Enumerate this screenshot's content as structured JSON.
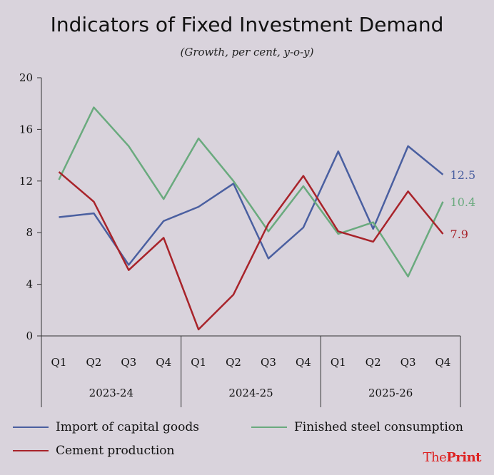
{
  "title": "Indicators of Fixed Investment Demand",
  "subtitle": "(Growth, per cent, y-o-y)",
  "brand": {
    "pre": "The",
    "bold": "Print"
  },
  "chart_data": {
    "type": "line",
    "x": [
      "Q1",
      "Q2",
      "Q3",
      "Q4",
      "Q1",
      "Q2",
      "Q3",
      "Q4",
      "Q1",
      "Q2",
      "Q3",
      "Q4"
    ],
    "groups": [
      {
        "label": "2023-24",
        "start": 0,
        "end": 3
      },
      {
        "label": "2024-25",
        "start": 4,
        "end": 7
      },
      {
        "label": "2025-26",
        "start": 8,
        "end": 11
      }
    ],
    "ylim": [
      0,
      20
    ],
    "yticks": [
      0,
      4,
      8,
      12,
      16,
      20
    ],
    "series": [
      {
        "name": "Import of capital goods",
        "color": "#4a5fa0",
        "values": [
          9.2,
          9.5,
          5.5,
          8.9,
          10.0,
          11.8,
          6.0,
          8.4,
          14.3,
          8.3,
          14.7,
          12.5
        ],
        "end_label": "12.5"
      },
      {
        "name": "Finished steel consumption",
        "color": "#6aaa7e",
        "values": [
          12.1,
          17.7,
          14.7,
          10.6,
          15.3,
          12.0,
          8.1,
          11.6,
          7.9,
          8.8,
          4.6,
          10.4
        ],
        "end_label": "10.4"
      },
      {
        "name": "Cement production",
        "color": "#a8232a",
        "values": [
          12.7,
          10.4,
          5.1,
          7.6,
          0.5,
          3.2,
          8.7,
          12.4,
          8.1,
          7.3,
          11.2,
          7.9
        ],
        "end_label": "7.9"
      }
    ],
    "grid": false,
    "legend": "bottom"
  }
}
